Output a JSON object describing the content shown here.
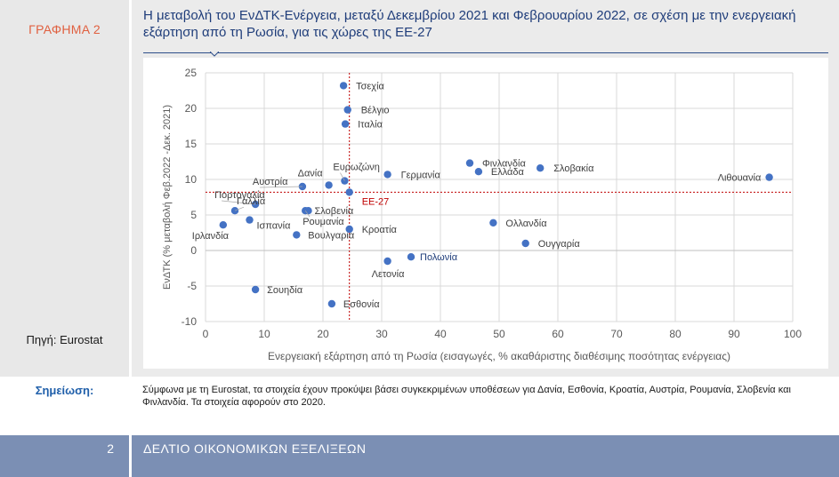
{
  "sidebar": {
    "graph_label": "ΓΡΑΦΗΜΑ 2",
    "source": "Πηγή: Eurostat",
    "note_label": "Σημείωση:"
  },
  "header": {
    "title": "Η μεταβολή του ΕνΔΤΚ-Ενέργεια, μεταξύ Δεκεμβρίου 2021 και Φεβρουαρίου 2022, σε σχέση με την ενεργειακή εξάρτηση από τη Ρωσία, για τις χώρες της ΕΕ-27"
  },
  "note": {
    "text": "Σύμφωνα με τη Eurostat, τα στοιχεία έχουν προκύψει βάσει συγκεκριμένων υποθέσεων για Δανία, Εσθονία, Κροατία, Αυστρία, Ρουμανία, Σλοβενία και Φινλανδία. Τα στοιχεία αφορούν στο 2020."
  },
  "footer": {
    "page_number": "2",
    "title": "ΔΕΛΤΙΟ ΟΙΚΟΝΟΜΙΚΩΝ ΕΞΕΛΙΞΕΩΝ"
  },
  "colors": {
    "point": "#4472c4",
    "reference": "#c00000",
    "reference_label": "#c00000",
    "grid": "#d9d9d9",
    "axis_text": "#595959"
  },
  "chart_data": {
    "type": "scatter",
    "xlabel": "Ενεργειακή εξάρτηση από τη Ρωσία (εισαγωγές, % ακαθάριστης διαθέσιμης ποσότητας ενέργειας)",
    "ylabel": "ΕνΔΤΚ (% μεταβολή Φεβ.2022 -Δεκ. 2021)",
    "xlim": [
      0,
      100
    ],
    "ylim": [
      -10,
      25
    ],
    "xticks": [
      "0",
      "10",
      "20",
      "30",
      "40",
      "50",
      "60",
      "70",
      "80",
      "90",
      "100"
    ],
    "yticks": [
      "-10",
      "-5",
      "0",
      "5",
      "10",
      "15",
      "20",
      "25"
    ],
    "grid": true,
    "reference": {
      "name": "ΕΕ-27",
      "x": 24.5,
      "y": 8.2
    },
    "points": [
      {
        "label": "Τσεχία",
        "x": 23.5,
        "y": 23.2
      },
      {
        "label": "Βέλγιο",
        "x": 24.2,
        "y": 19.8
      },
      {
        "label": "Ιταλία",
        "x": 23.8,
        "y": 17.8
      },
      {
        "label": "Ευρωζώνη",
        "x": 23.7,
        "y": 9.8
      },
      {
        "label": "Γερμανία",
        "x": 31.0,
        "y": 10.7
      },
      {
        "label": "Δανία",
        "x": 21.0,
        "y": 9.2
      },
      {
        "label": "Αυστρία",
        "x": 16.5,
        "y": 9.0
      },
      {
        "label": "Φινλανδία",
        "x": 45.0,
        "y": 12.3
      },
      {
        "label": "Ελλάδα",
        "x": 46.5,
        "y": 11.1
      },
      {
        "label": "Σλοβακία",
        "x": 57.0,
        "y": 11.6
      },
      {
        "label": "Λιθουανία",
        "x": 96.0,
        "y": 10.3
      },
      {
        "label": "Πορτογαλία",
        "x": 8.5,
        "y": 6.5
      },
      {
        "label": "Γαλλία",
        "x": 5.0,
        "y": 5.6
      },
      {
        "label": "Σλοβενία",
        "x": 17.5,
        "y": 5.6
      },
      {
        "label": "Ρουμανία",
        "x": 17.0,
        "y": 5.6
      },
      {
        "label": "Ισπανία",
        "x": 7.5,
        "y": 4.3
      },
      {
        "label": "Ιρλανδία",
        "x": 3.0,
        "y": 3.6
      },
      {
        "label": "Βουλγαρία",
        "x": 15.5,
        "y": 2.2
      },
      {
        "label": "Κροατία",
        "x": 24.5,
        "y": 3.0
      },
      {
        "label": "Ολλανδία",
        "x": 49.0,
        "y": 3.9
      },
      {
        "label": "Ουγγαρία",
        "x": 54.5,
        "y": 1.0
      },
      {
        "label": "Πολωνία",
        "x": 35.0,
        "y": -0.9
      },
      {
        "label": "Λετονία",
        "x": 31.0,
        "y": -1.5
      },
      {
        "label": "Σουηδία",
        "x": 8.5,
        "y": -5.5
      },
      {
        "label": "Εσθονία",
        "x": 21.5,
        "y": -7.5
      }
    ]
  }
}
